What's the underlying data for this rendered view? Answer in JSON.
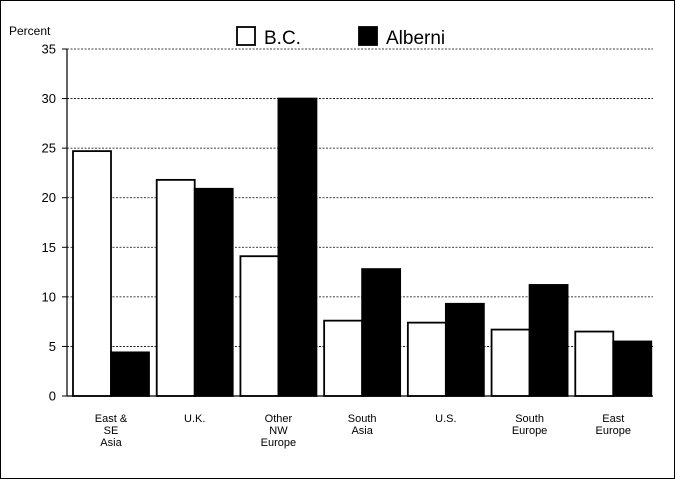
{
  "chart_data": {
    "type": "bar",
    "title": "",
    "xlabel": "",
    "ylabel": "Percent",
    "ylim": [
      0,
      35
    ],
    "yticks": [
      0,
      5,
      10,
      15,
      20,
      25,
      30,
      35
    ],
    "grid": true,
    "legend_position": "top",
    "categories": [
      [
        "East &",
        "SE",
        "Asia"
      ],
      [
        "U.K."
      ],
      [
        "Other",
        "NW",
        "Europe"
      ],
      [
        "South",
        "Asia"
      ],
      [
        "U.S."
      ],
      [
        "South",
        "Europe"
      ],
      [
        "East",
        "Europe"
      ]
    ],
    "series": [
      {
        "name": "B.C.",
        "color": "#ffffff",
        "values": [
          24.7,
          21.8,
          14.1,
          7.6,
          7.4,
          6.7,
          6.5
        ]
      },
      {
        "name": "Alberni",
        "color": "#000000",
        "values": [
          4.4,
          20.9,
          30.0,
          12.8,
          9.3,
          11.2,
          5.5
        ]
      }
    ]
  }
}
